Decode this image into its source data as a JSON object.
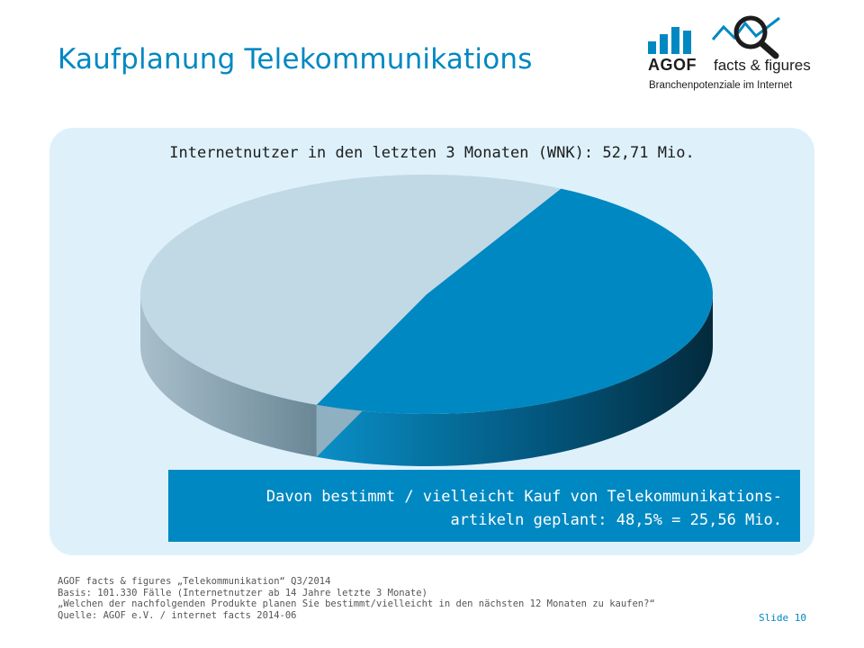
{
  "title": "Kaufplanung Telekommunikations",
  "logo": {
    "brand": "AGOF",
    "tagline": "facts & figures",
    "subline": "Branchenpotenziale im Internet",
    "icon": "bar-chart-magnifier-icon",
    "colors": {
      "bars": "#0088c2",
      "dark": "#1c1c1c"
    }
  },
  "callout": {
    "line1": "Davon bestimmt / vielleicht Kauf von Telekommunikations-",
    "line2": "artikeln geplant: 48,5% = 25,56 Mio."
  },
  "footer": {
    "line1": "AGOF facts & figures „Telekommunikation“ Q3/2014",
    "line2": "Basis: 101.330 Fälle (Internetnutzer ab 14 Jahre letzte 3 Monate)",
    "line3": "„Welchen der nachfolgenden Produkte planen Sie bestimmt/vielleicht in den nächsten 12 Monaten zu kaufen?“",
    "line4": "Quelle: AGOF e.V. / internet facts 2014-06"
  },
  "slide": {
    "label": "Slide",
    "number": "10"
  },
  "colors": {
    "accent": "#0088c2",
    "panel": "#def1fb",
    "slice_highlight": "#0088c2",
    "slice_rest": "#c0d9e5"
  },
  "chart_data": {
    "type": "pie",
    "style": "3d",
    "title": "Internetnutzer in den letzten 3 Monaten (WNK): 52,71 Mio.",
    "slices": [
      {
        "value": 48.5,
        "color": "#0088c2"
      },
      {
        "value": 51.5,
        "color": "#c0d9e5"
      }
    ]
  }
}
